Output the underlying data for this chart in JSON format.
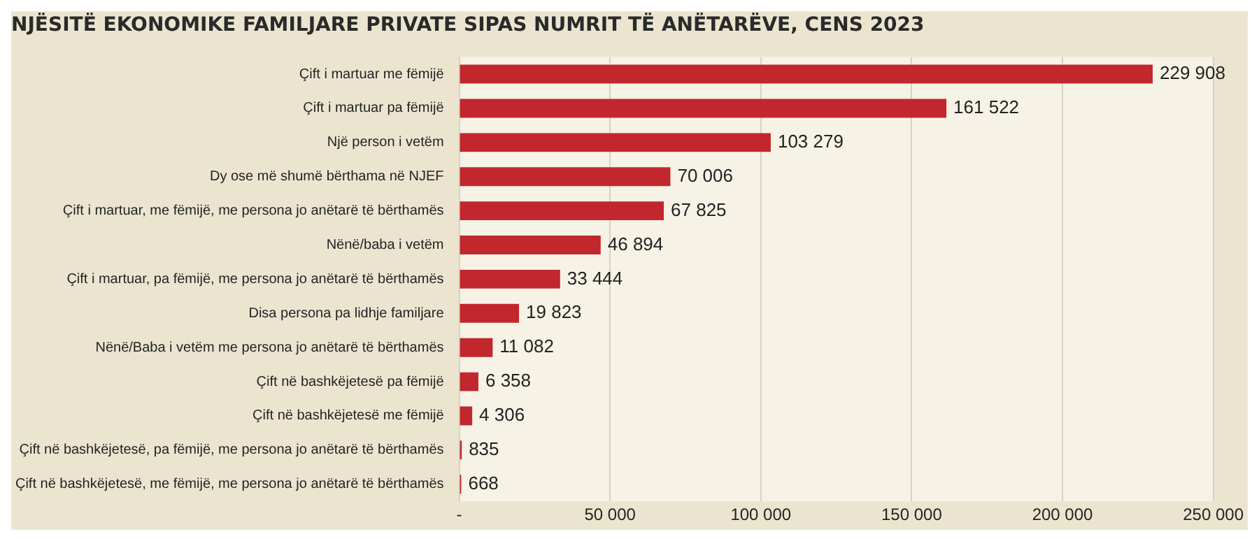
{
  "chart_data": {
    "type": "bar",
    "orientation": "horizontal",
    "title": "NJËSITË EKONOMIKE FAMILJARE PRIVATE SIPAS NUMRIT TË ANËTARËVE, CENS 2023",
    "categories": [
      "Çift i martuar me fëmijë",
      "Çift i martuar pa fëmijë",
      "Një person i vetëm",
      "Dy ose më shumë bërthama në NJEF",
      "Çift i martuar, me fëmijë, me persona jo anëtarë të bërthamës",
      "Nënë/baba i vetëm",
      "Çift i martuar, pa fëmijë, me persona jo anëtarë të bërthamës",
      "Disa persona pa lidhje familjare",
      "Nënë/Baba i vetëm me persona jo anëtarë të bërthamës",
      "Çift në bashkëjetesë pa fëmijë",
      "Çift në bashkëjetesë me fëmijë",
      "Çift në bashkëjetesë, pa fëmijë, me persona jo anëtarë të bërthamës",
      "Çift në bashkëjetesë, me fëmijë, me persona jo anëtarë të bërthamës"
    ],
    "values": [
      229908,
      161522,
      103279,
      70006,
      67825,
      46894,
      33444,
      19823,
      11082,
      6358,
      4306,
      835,
      668
    ],
    "value_labels": [
      "229 908",
      "161 522",
      "103 279",
      "70 006",
      "67 825",
      "46 894",
      "33 444",
      "19 823",
      "11 082",
      "6 358",
      "4 306",
      "835",
      "668"
    ],
    "color": "#c1272d",
    "xlim": [
      0,
      250000
    ],
    "xticks": [
      {
        "value": 0,
        "label": "-"
      },
      {
        "value": 50000,
        "label": "50 000"
      },
      {
        "value": 100000,
        "label": "100 000"
      },
      {
        "value": 150000,
        "label": "150 000"
      },
      {
        "value": 200000,
        "label": "200 000"
      },
      {
        "value": 250000,
        "label": "250 000"
      }
    ],
    "grid": "x"
  }
}
